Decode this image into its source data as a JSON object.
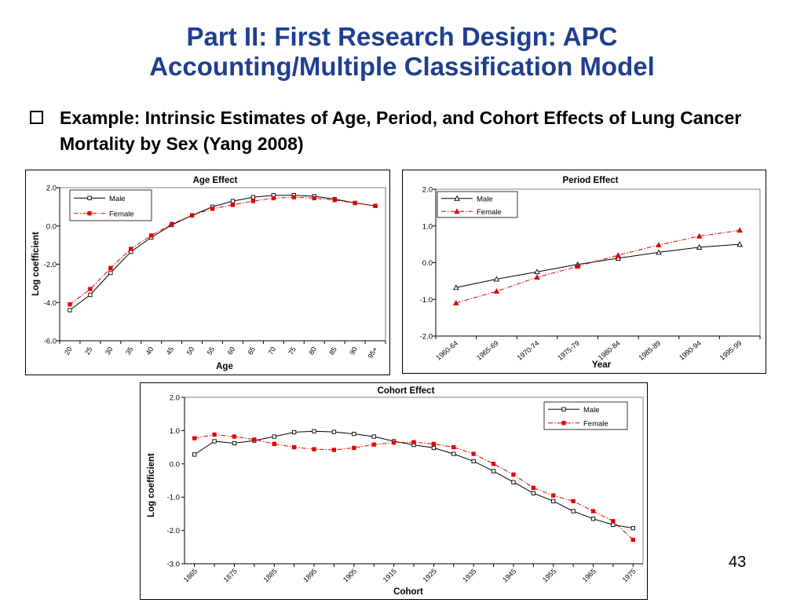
{
  "slide": {
    "title_line1": "Part II:  First Research Design: APC",
    "title_line2": "Accounting/Multiple Classification Model",
    "bullet": "Example: Intrinsic Estimates of Age, Period, and Cohort Effects of Lung Cancer Mortality by Sex (Yang 2008)",
    "page_number": "43"
  },
  "colors": {
    "title": "#1f3f8f",
    "male": "#000000",
    "female": "#e00000"
  },
  "chart_data": [
    {
      "id": "age",
      "type": "line",
      "title": "Age Effect",
      "xlabel": "Age",
      "ylabel": "Log coefficient",
      "categories": [
        "20",
        "25",
        "30",
        "35",
        "40",
        "45",
        "50",
        "55",
        "60",
        "65",
        "70",
        "75",
        "80",
        "85",
        "90",
        "95+"
      ],
      "ylim": [
        -6,
        2
      ],
      "yticks": [
        2,
        0,
        -2,
        -4,
        -6
      ],
      "ytick_labels": [
        "2.0",
        "0.0",
        "-2.0",
        "-4.0",
        "-6.0"
      ],
      "legend": "top-left",
      "grid": false,
      "series": [
        {
          "name": "Male",
          "marker": "square",
          "values": [
            -4.4,
            -3.6,
            -2.45,
            -1.35,
            -0.6,
            0.05,
            0.55,
            1.0,
            1.3,
            1.5,
            1.6,
            1.6,
            1.55,
            1.4,
            1.2,
            1.05
          ]
        },
        {
          "name": "Female",
          "marker": "square-filled",
          "values": [
            -4.1,
            -3.3,
            -2.2,
            -1.2,
            -0.5,
            0.1,
            0.55,
            0.9,
            1.1,
            1.3,
            1.45,
            1.5,
            1.45,
            1.35,
            1.2,
            1.05
          ]
        }
      ]
    },
    {
      "id": "period",
      "type": "line",
      "title": "Period Effect",
      "xlabel": "Year",
      "ylabel": "",
      "categories": [
        "1960-64",
        "1965-69",
        "1970-74",
        "1975-79",
        "1980-84",
        "1985-89",
        "1990-94",
        "1995-99"
      ],
      "ylim": [
        -2,
        2
      ],
      "yticks": [
        2,
        1,
        0,
        -1,
        -2
      ],
      "ytick_labels": [
        "2.0",
        "1.0",
        "0.0",
        "-1.0",
        "-2.0"
      ],
      "legend": "top-left",
      "grid": false,
      "series": [
        {
          "name": "Male",
          "marker": "triangle",
          "values": [
            -0.68,
            -0.45,
            -0.25,
            -0.05,
            0.12,
            0.28,
            0.42,
            0.5
          ]
        },
        {
          "name": "Female",
          "marker": "triangle-filled",
          "values": [
            -1.1,
            -0.78,
            -0.4,
            -0.1,
            0.2,
            0.48,
            0.72,
            0.88
          ]
        }
      ]
    },
    {
      "id": "cohort",
      "type": "line",
      "title": "Cohort Effect",
      "xlabel": "Cohort",
      "ylabel": "Log coefficient",
      "tick_categories": [
        "1865",
        "1875",
        "1885",
        "1895",
        "1905",
        "1915",
        "1925",
        "1935",
        "1945",
        "1955",
        "1965",
        "1975"
      ],
      "x": [
        1865,
        1870,
        1875,
        1880,
        1885,
        1890,
        1895,
        1900,
        1905,
        1910,
        1915,
        1920,
        1925,
        1930,
        1935,
        1940,
        1945,
        1950,
        1955,
        1960,
        1965,
        1970,
        1975
      ],
      "ylim": [
        -3,
        2
      ],
      "yticks": [
        2,
        1,
        0,
        -1,
        -2,
        -3
      ],
      "ytick_labels": [
        "2.0",
        "1.0",
        "0.0",
        "-1.0",
        "-2.0",
        "-3.0"
      ],
      "legend": "top-right",
      "grid": false,
      "series": [
        {
          "name": "Male",
          "marker": "square",
          "values": [
            0.28,
            0.68,
            0.62,
            0.7,
            0.82,
            0.95,
            0.98,
            0.96,
            0.9,
            0.82,
            0.68,
            0.57,
            0.48,
            0.3,
            0.08,
            -0.22,
            -0.55,
            -0.88,
            -1.12,
            -1.42,
            -1.65,
            -1.83,
            -1.93
          ]
        },
        {
          "name": "Female",
          "marker": "square-filled",
          "values": [
            0.77,
            0.88,
            0.82,
            0.73,
            0.6,
            0.5,
            0.44,
            0.42,
            0.48,
            0.58,
            0.64,
            0.65,
            0.6,
            0.5,
            0.3,
            0.0,
            -0.32,
            -0.72,
            -0.95,
            -1.12,
            -1.42,
            -1.72,
            -2.28
          ]
        }
      ]
    }
  ]
}
